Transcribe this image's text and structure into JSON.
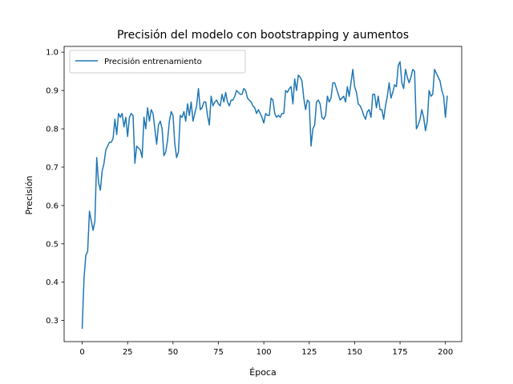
{
  "chart_data": {
    "type": "line",
    "title": "Precisión del modelo con bootstrapping y aumentos",
    "xlabel": "Época",
    "ylabel": "Precisión",
    "xlim": [
      -9.95,
      208.95
    ],
    "ylim": [
      0.245,
      1.015
    ],
    "x_ticks": [
      0,
      25,
      50,
      75,
      100,
      125,
      150,
      175,
      200
    ],
    "y_ticks": [
      0.3,
      0.4,
      0.5,
      0.6,
      0.7,
      0.8,
      0.9,
      1.0
    ],
    "y_tick_labels": [
      "0.3",
      "0.4",
      "0.5",
      "0.6",
      "0.7",
      "0.8",
      "0.9",
      "1.0"
    ],
    "grid": false,
    "legend_position": "upper left",
    "series": [
      {
        "name": "Precisión entrenamiento",
        "color": "#1f77b4",
        "x_start": 0,
        "x_step": 1,
        "values": [
          0.28,
          0.41,
          0.47,
          0.48,
          0.585,
          0.56,
          0.535,
          0.56,
          0.725,
          0.66,
          0.64,
          0.69,
          0.71,
          0.745,
          0.755,
          0.765,
          0.765,
          0.775,
          0.825,
          0.785,
          0.84,
          0.83,
          0.84,
          0.805,
          0.83,
          0.78,
          0.83,
          0.84,
          0.835,
          0.71,
          0.755,
          0.75,
          0.745,
          0.725,
          0.83,
          0.8,
          0.855,
          0.82,
          0.85,
          0.84,
          0.8,
          0.76,
          0.81,
          0.82,
          0.8,
          0.73,
          0.74,
          0.77,
          0.82,
          0.845,
          0.835,
          0.76,
          0.725,
          0.74,
          0.835,
          0.83,
          0.845,
          0.82,
          0.865,
          0.835,
          0.87,
          0.82,
          0.84,
          0.86,
          0.905,
          0.85,
          0.855,
          0.87,
          0.87,
          0.835,
          0.81,
          0.885,
          0.86,
          0.87,
          0.875,
          0.865,
          0.86,
          0.89,
          0.87,
          0.895,
          0.87,
          0.86,
          0.875,
          0.875,
          0.885,
          0.9,
          0.895,
          0.89,
          0.89,
          0.905,
          0.9,
          0.88,
          0.875,
          0.87,
          0.86,
          0.855,
          0.84,
          0.85,
          0.84,
          0.83,
          0.815,
          0.84,
          0.835,
          0.835,
          0.88,
          0.875,
          0.84,
          0.83,
          0.835,
          0.83,
          0.84,
          0.84,
          0.9,
          0.895,
          0.905,
          0.91,
          0.865,
          0.93,
          0.9,
          0.94,
          0.935,
          0.925,
          0.88,
          0.85,
          0.875,
          0.87,
          0.755,
          0.8,
          0.81,
          0.87,
          0.875,
          0.865,
          0.83,
          0.825,
          0.835,
          0.885,
          0.87,
          0.88,
          0.92,
          0.92,
          0.905,
          0.89,
          0.875,
          0.88,
          0.885,
          0.87,
          0.91,
          0.885,
          0.92,
          0.955,
          0.91,
          0.895,
          0.865,
          0.86,
          0.85,
          0.835,
          0.825,
          0.845,
          0.85,
          0.83,
          0.89,
          0.89,
          0.855,
          0.885,
          0.85,
          0.85,
          0.825,
          0.86,
          0.885,
          0.92,
          0.88,
          0.895,
          0.915,
          0.91,
          0.965,
          0.975,
          0.92,
          0.905,
          0.955,
          0.935,
          0.92,
          0.935,
          0.955,
          0.95,
          0.8,
          0.81,
          0.825,
          0.85,
          0.83,
          0.795,
          0.82,
          0.9,
          0.885,
          0.89,
          0.955,
          0.945,
          0.935,
          0.925,
          0.9,
          0.885,
          0.83,
          0.885
        ]
      }
    ]
  }
}
